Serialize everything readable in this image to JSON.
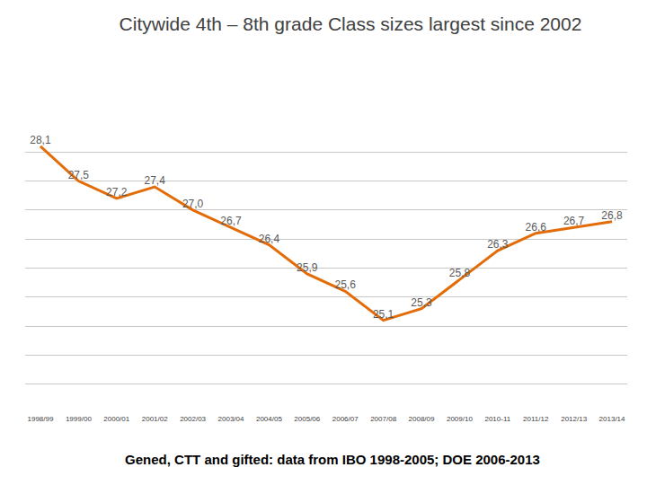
{
  "chart_data": {
    "type": "line",
    "title": "Citywide 4th – 8th grade Class sizes largest since 2002",
    "categories": [
      "1998/99",
      "1999/00",
      "2000/01",
      "2001/02",
      "2002/03",
      "2003/04",
      "2004/05",
      "2005/06",
      "2006/07",
      "2007/08",
      "2008/09",
      "2009/10",
      "2010-11",
      "2011/12",
      "2012/13",
      "2013/14"
    ],
    "values": [
      28.1,
      27.5,
      27.2,
      27.4,
      27.0,
      26.7,
      26.4,
      25.9,
      25.6,
      25.1,
      25.3,
      25.8,
      26.3,
      26.6,
      26.7,
      26.8
    ],
    "value_labels": [
      "28,1",
      "27,5",
      "27,2",
      "27,4",
      "27,0",
      "26,7",
      "26,4",
      "25,9",
      "25,6",
      "25,1",
      "25,3",
      "25,8",
      "26,3",
      "26,6",
      "26,7",
      "26,8"
    ],
    "color": "#e36c09",
    "ylim": [
      23.5,
      28.5
    ],
    "yticks": [
      23.5,
      24,
      24.5,
      25,
      25.5,
      26,
      26.5,
      27,
      27.5,
      28,
      28.5
    ],
    "grid": true,
    "data_labels": true,
    "tick_labels": "x",
    "annotations": [
      "Gened, CTT and gifted: data from IBO 1998-2005; DOE 2006-2013"
    ]
  }
}
